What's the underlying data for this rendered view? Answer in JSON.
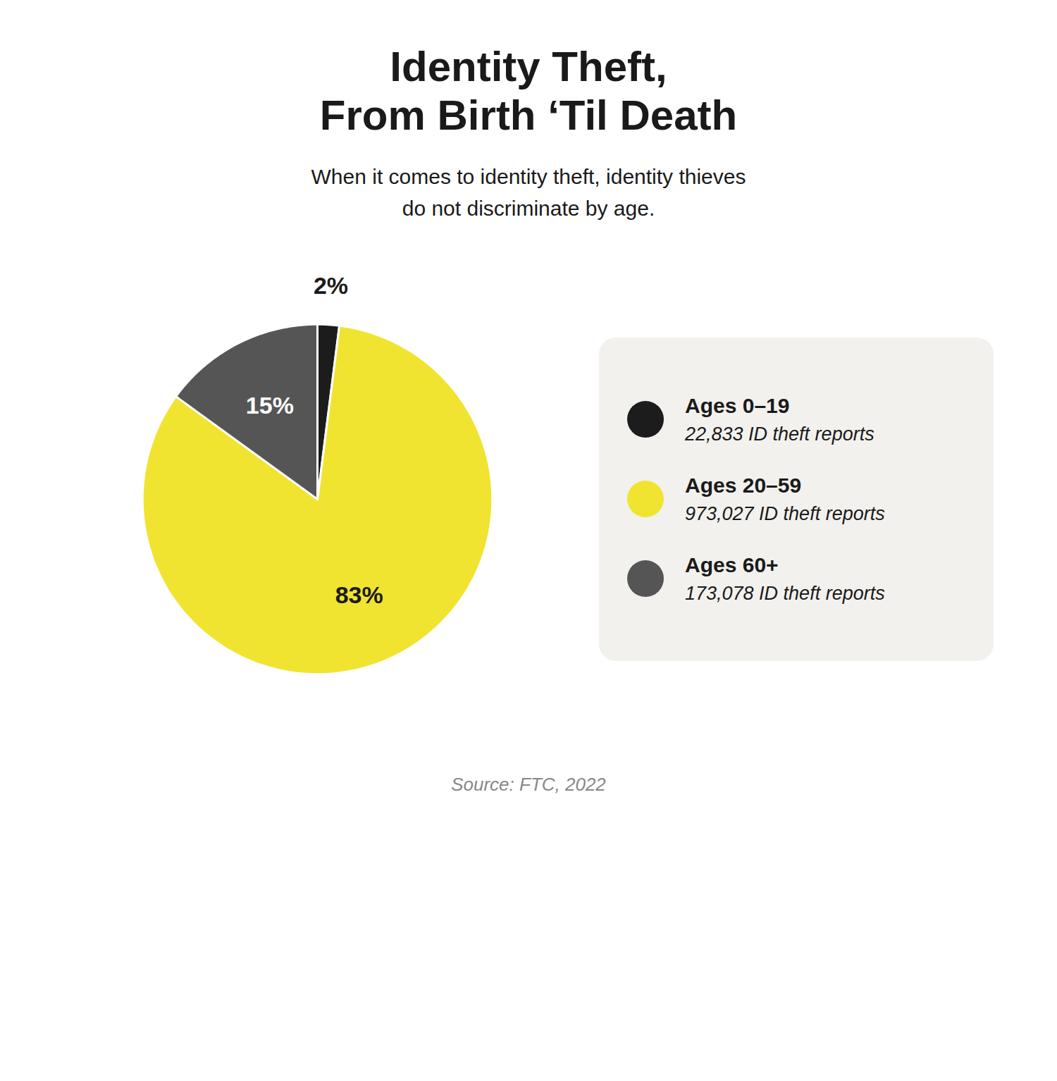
{
  "chart_data": {
    "type": "pie",
    "title": "Identity Theft,\nFrom Birth ‘Til Death",
    "subtitle": "When it comes to identity theft, identity thieves\ndo not discriminate by age.",
    "source": "Source: FTC, 2022",
    "categories": [
      "Ages 0–19",
      "Ages 20–59",
      "Ages 60+"
    ],
    "values": [
      2,
      83,
      15
    ],
    "value_labels": [
      "2%",
      "83%",
      "15%"
    ],
    "colors": [
      "#1c1c1c",
      "#f0e430",
      "#555555"
    ],
    "reports": [
      "22,833 ID theft reports",
      "973,027 ID theft reports",
      "173,078 ID theft reports"
    ],
    "data_labels": true,
    "legend": "right"
  }
}
